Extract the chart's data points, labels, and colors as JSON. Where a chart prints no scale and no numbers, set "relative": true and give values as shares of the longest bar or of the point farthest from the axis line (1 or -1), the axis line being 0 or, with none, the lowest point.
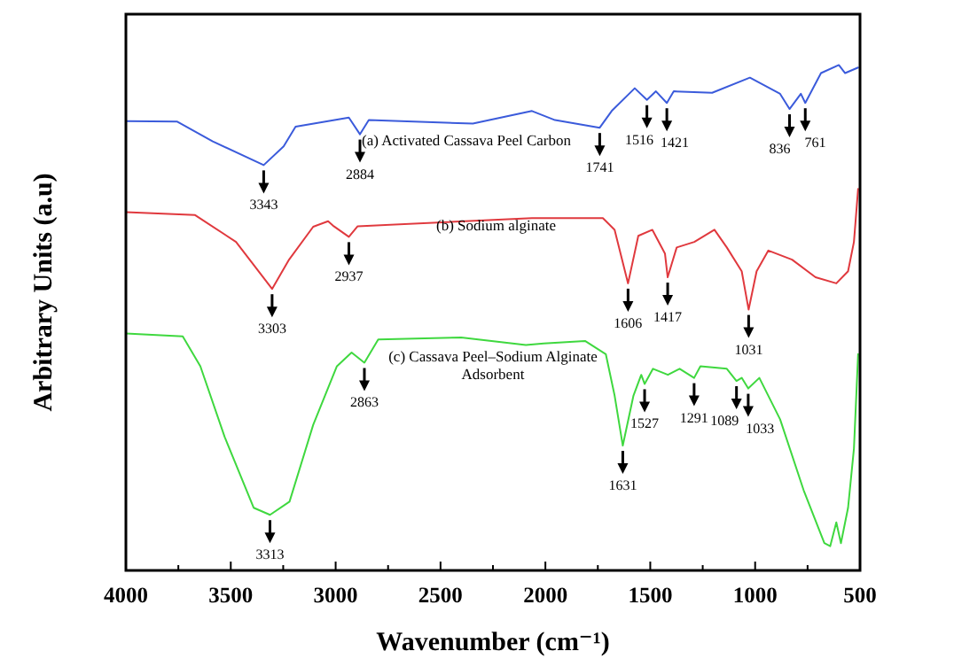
{
  "chart_data": {
    "type": "line",
    "relative": true,
    "xlabel": "Wavenumber (cm⁻¹)",
    "ylabel": "Arbitrary Units (a.u)",
    "xlim": [
      4000,
      500
    ],
    "xticks": [
      4000,
      {
        "value": 3750,
        "label": null
      },
      3500,
      {
        "value": 3250,
        "label": null
      },
      3000,
      {
        "value": 2750,
        "label": null
      },
      2500,
      {
        "value": 2250,
        "label": null
      },
      2000,
      {
        "value": 1750,
        "label": null
      },
      1500,
      {
        "value": 1250,
        "label": null
      },
      1000,
      {
        "value": 750,
        "label": null
      },
      500
    ],
    "grid": false,
    "legend": false,
    "marker": "none",
    "line_style": "solid",
    "series": [
      {
        "name": "(a) Activated Cassava Peel Carbon",
        "color": "#3b5bdb",
        "x": [
          4000,
          3755,
          3586,
          3343,
          3248,
          3191,
          2937,
          2884,
          2842,
          2346,
          2064,
          1954,
          1741,
          1684,
          1574,
          1516,
          1473,
          1421,
          1388,
          1205,
          1025,
          881,
          836,
          782,
          761,
          686,
          601,
          571,
          509
        ],
        "values": [
          0.889,
          0.888,
          0.849,
          0.802,
          0.839,
          0.878,
          0.896,
          0.863,
          0.891,
          0.884,
          0.909,
          0.891,
          0.876,
          0.909,
          0.954,
          0.931,
          0.948,
          0.925,
          0.948,
          0.945,
          0.975,
          0.943,
          0.913,
          0.943,
          0.925,
          0.984,
          1.0,
          0.984,
          0.995
        ]
      },
      {
        "name": "(b) Sodium alginate",
        "color": "#e0393e",
        "x": [
          4000,
          3670,
          3475,
          3303,
          3222,
          3107,
          3036,
          3009,
          2937,
          2895,
          2064,
          1726,
          1670,
          1606,
          1557,
          1490,
          1430,
          1417,
          1374,
          1290,
          1194,
          1135,
          1064,
          1031,
          993,
          937,
          824,
          712,
          613,
          557,
          529,
          509
        ],
        "values": [
          0.709,
          0.703,
          0.65,
          0.557,
          0.615,
          0.68,
          0.691,
          0.681,
          0.66,
          0.681,
          0.697,
          0.697,
          0.674,
          0.568,
          0.662,
          0.674,
          0.627,
          0.58,
          0.639,
          0.65,
          0.674,
          0.639,
          0.592,
          0.516,
          0.592,
          0.633,
          0.615,
          0.58,
          0.568,
          0.592,
          0.65,
          0.755
        ]
      },
      {
        "name": "(c) Cassava Peel–Sodium Alginate Adsorbent",
        "color": "#3fd83f",
        "x": [
          4000,
          3729,
          3645,
          3529,
          3391,
          3313,
          3220,
          3107,
          2994,
          2924,
          2863,
          2797,
          2402,
          2093,
          2008,
          1811,
          1712,
          1670,
          1631,
          1580,
          1543,
          1527,
          1487,
          1416,
          1360,
          1291,
          1261,
          1135,
          1089,
          1064,
          1033,
          980,
          881,
          769,
          670,
          642,
          613,
          591,
          557,
          529,
          509
        ],
        "values": [
          0.469,
          0.463,
          0.404,
          0.264,
          0.124,
          0.11,
          0.136,
          0.288,
          0.404,
          0.431,
          0.411,
          0.457,
          0.461,
          0.446,
          0.449,
          0.454,
          0.428,
          0.346,
          0.247,
          0.346,
          0.387,
          0.369,
          0.399,
          0.387,
          0.399,
          0.381,
          0.404,
          0.399,
          0.375,
          0.381,
          0.36,
          0.381,
          0.299,
          0.159,
          0.054,
          0.048,
          0.095,
          0.054,
          0.124,
          0.241,
          0.428
        ]
      }
    ],
    "annotations": [
      {
        "text": "3343",
        "x": 3343,
        "y": 0.802
      },
      {
        "text": "2884",
        "x": 2884,
        "y": 0.863
      },
      {
        "text": "1741",
        "x": 1741,
        "y": 0.876
      },
      {
        "text": "1516",
        "x": 1516,
        "y": 0.931
      },
      {
        "text": "1421",
        "x": 1421,
        "y": 0.925
      },
      {
        "text": "836",
        "x": 836,
        "y": 0.913
      },
      {
        "text": "761",
        "x": 761,
        "y": 0.925
      },
      {
        "text": "3303",
        "x": 3303,
        "y": 0.557
      },
      {
        "text": "2937",
        "x": 2937,
        "y": 0.66
      },
      {
        "text": "1606",
        "x": 1606,
        "y": 0.568
      },
      {
        "text": "1417",
        "x": 1417,
        "y": 0.58
      },
      {
        "text": "1031",
        "x": 1031,
        "y": 0.516
      },
      {
        "text": "3313",
        "x": 3313,
        "y": 0.11
      },
      {
        "text": "2863",
        "x": 2863,
        "y": 0.411
      },
      {
        "text": "1631",
        "x": 1631,
        "y": 0.247
      },
      {
        "text": "1527",
        "x": 1527,
        "y": 0.369
      },
      {
        "text": "1291",
        "x": 1291,
        "y": 0.381
      },
      {
        "text": "1089",
        "x": 1089,
        "y": 0.375
      },
      {
        "text": "1033",
        "x": 1033,
        "y": 0.36
      }
    ]
  }
}
